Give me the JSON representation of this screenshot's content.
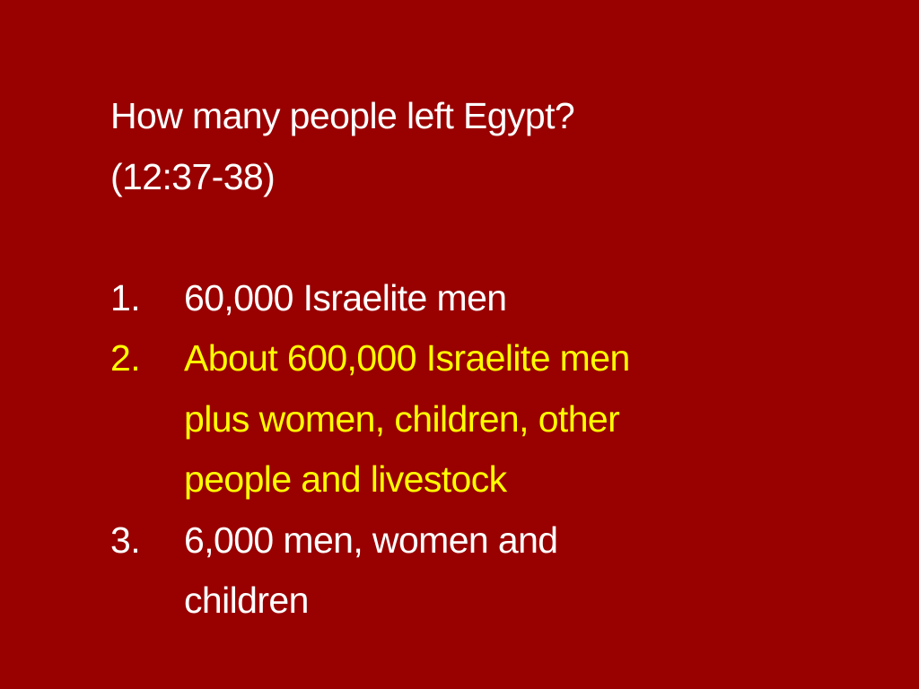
{
  "slide": {
    "title_lines": [
      "How many people left Egypt?",
      "(12:37-38)"
    ],
    "options": [
      {
        "number": "1.",
        "lines": [
          "60,000 Israelite men"
        ],
        "highlighted": false
      },
      {
        "number": "2.",
        "lines": [
          "About 600,000 Israelite men",
          "plus women, children, other",
          "people and livestock"
        ],
        "highlighted": true
      },
      {
        "number": "3.",
        "lines": [
          "6,000 men, women and",
          "children"
        ],
        "highlighted": false
      }
    ]
  },
  "colors": {
    "background": "#990000",
    "text": "#ffffff",
    "highlight": "#ffff00"
  }
}
